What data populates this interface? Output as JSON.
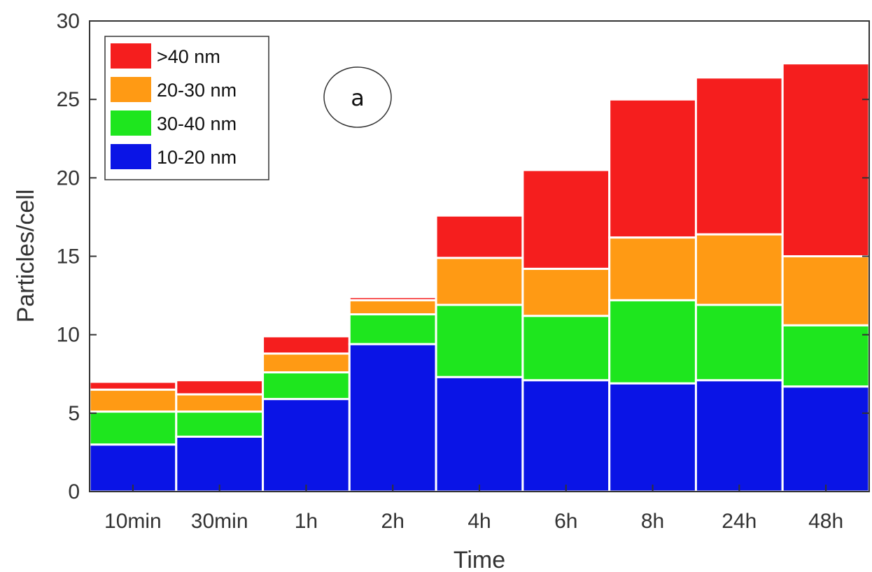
{
  "chart_data": {
    "type": "bar",
    "stacked": true,
    "categories": [
      "10min",
      "30min",
      "1h",
      "2h",
      "4h",
      "6h",
      "8h",
      "24h",
      "48h"
    ],
    "series": [
      {
        "name": "10-20 nm",
        "color": "#0a14e6",
        "values": [
          3.0,
          3.5,
          5.9,
          9.4,
          7.3,
          7.1,
          6.9,
          7.1,
          6.7
        ]
      },
      {
        "name": "30-40 nm",
        "color": "#1ee61e",
        "values": [
          2.1,
          1.6,
          1.7,
          1.9,
          4.6,
          4.1,
          5.3,
          4.8,
          3.9
        ]
      },
      {
        "name": "20-30 nm",
        "color": "#ff9a14",
        "values": [
          1.4,
          1.1,
          1.2,
          0.9,
          3.0,
          3.0,
          4.0,
          4.5,
          4.4
        ]
      },
      {
        "name": ">40 nm",
        "color": "#f51e1e",
        "values": [
          0.5,
          0.9,
          1.1,
          0.2,
          2.7,
          6.3,
          8.8,
          10.0,
          12.3
        ]
      }
    ],
    "legend_order": [
      3,
      2,
      1,
      0
    ],
    "legend_position": "top-left",
    "annotation": "a",
    "xlabel": "Time",
    "ylabel": "Particles/cell",
    "ylim": [
      0,
      30
    ],
    "yticks": [
      0,
      5,
      10,
      15,
      20,
      25,
      30
    ],
    "grid": false
  }
}
